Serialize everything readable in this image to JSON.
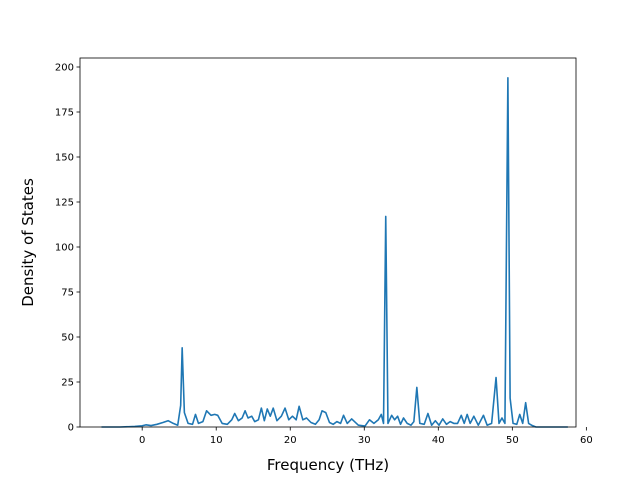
{
  "chart_data": {
    "type": "line",
    "title": "",
    "xlabel": "Frequency (THz)",
    "ylabel": "Density of States",
    "xlim": [
      -8.4,
      58.6
    ],
    "ylim": [
      0,
      205
    ],
    "xticks": [
      0,
      10,
      20,
      30,
      40,
      50,
      60
    ],
    "yticks": [
      0,
      25,
      50,
      75,
      100,
      125,
      150,
      175,
      200
    ],
    "grid": false,
    "legend": "none",
    "series": [
      {
        "color": "#1f77b4",
        "x": [
          -5.5,
          -3,
          -1,
          0,
          0.5,
          1.2,
          2,
          2.8,
          3.5,
          4.2,
          4.8,
          5.2,
          5.4,
          5.7,
          6.2,
          6.8,
          7.2,
          7.6,
          8.2,
          8.7,
          9.3,
          9.8,
          10.2,
          10.8,
          11.5,
          12.1,
          12.5,
          13,
          13.5,
          13.9,
          14.3,
          14.8,
          15.2,
          15.7,
          16.1,
          16.5,
          16.9,
          17.3,
          17.7,
          18.2,
          18.8,
          19.3,
          19.8,
          20.3,
          20.8,
          21.2,
          21.7,
          22.2,
          22.8,
          23.4,
          23.9,
          24.3,
          24.8,
          25.3,
          25.8,
          26.3,
          26.8,
          27.2,
          27.7,
          28.3,
          29.2,
          30.1,
          30.7,
          31.3,
          31.9,
          32.3,
          32.6,
          32.9,
          33.2,
          33.7,
          34.1,
          34.5,
          34.9,
          35.3,
          35.8,
          36.3,
          36.7,
          37.1,
          37.5,
          38.1,
          38.6,
          39.1,
          39.6,
          40.1,
          40.6,
          41.1,
          41.6,
          42.1,
          42.6,
          43.1,
          43.5,
          43.9,
          44.3,
          44.8,
          45.4,
          46.1,
          46.6,
          47.2,
          47.8,
          48.2,
          48.6,
          49,
          49.4,
          49.7,
          50.1,
          50.6,
          51,
          51.4,
          51.8,
          52.2,
          52.6,
          53.2,
          54,
          55.5,
          57.5
        ],
        "y": [
          0,
          0,
          0.3,
          0.7,
          1.2,
          0.8,
          1.5,
          2.5,
          3.5,
          2,
          1,
          12,
          44,
          8,
          2,
          1.5,
          7,
          2,
          3,
          9,
          6.5,
          7,
          6.5,
          2,
          1.5,
          4,
          7.5,
          3.5,
          5,
          9,
          5,
          6,
          3,
          4,
          10.5,
          3.5,
          10,
          6,
          10.5,
          3.5,
          6,
          10.5,
          4,
          6,
          4,
          11.5,
          4,
          5,
          2.5,
          1.5,
          4,
          9,
          8,
          2.5,
          1.5,
          3,
          2,
          6.5,
          2,
          4.5,
          1,
          0.5,
          4,
          2,
          4,
          7,
          2,
          117,
          2,
          6.5,
          4,
          6,
          1.5,
          5,
          2,
          1,
          3,
          22,
          2,
          1.5,
          7.5,
          1,
          3.5,
          1,
          4.5,
          1.5,
          3,
          2,
          2,
          6.5,
          2,
          7,
          2,
          6,
          1,
          6.5,
          1,
          2,
          27.5,
          2,
          5,
          2,
          194,
          16,
          2,
          1.5,
          7,
          2,
          13.5,
          2,
          1,
          0,
          0,
          0,
          0
        ]
      }
    ]
  }
}
